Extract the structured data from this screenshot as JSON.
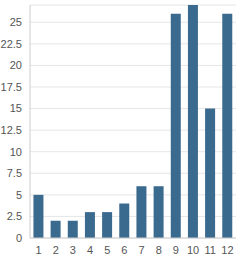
{
  "chart_data": {
    "type": "bar",
    "categories": [
      "1",
      "2",
      "3",
      "4",
      "5",
      "6",
      "7",
      "8",
      "9",
      "10",
      "11",
      "12"
    ],
    "values": [
      5,
      2,
      2,
      3,
      3,
      4,
      6,
      6,
      26,
      27,
      15,
      26
    ],
    "color": "#3b6a8f",
    "ylim": [
      0,
      27
    ],
    "yticks": [
      0,
      2.5,
      5,
      7.5,
      10,
      12.5,
      15,
      17.5,
      20,
      22.5,
      25
    ],
    "grid": true
  }
}
